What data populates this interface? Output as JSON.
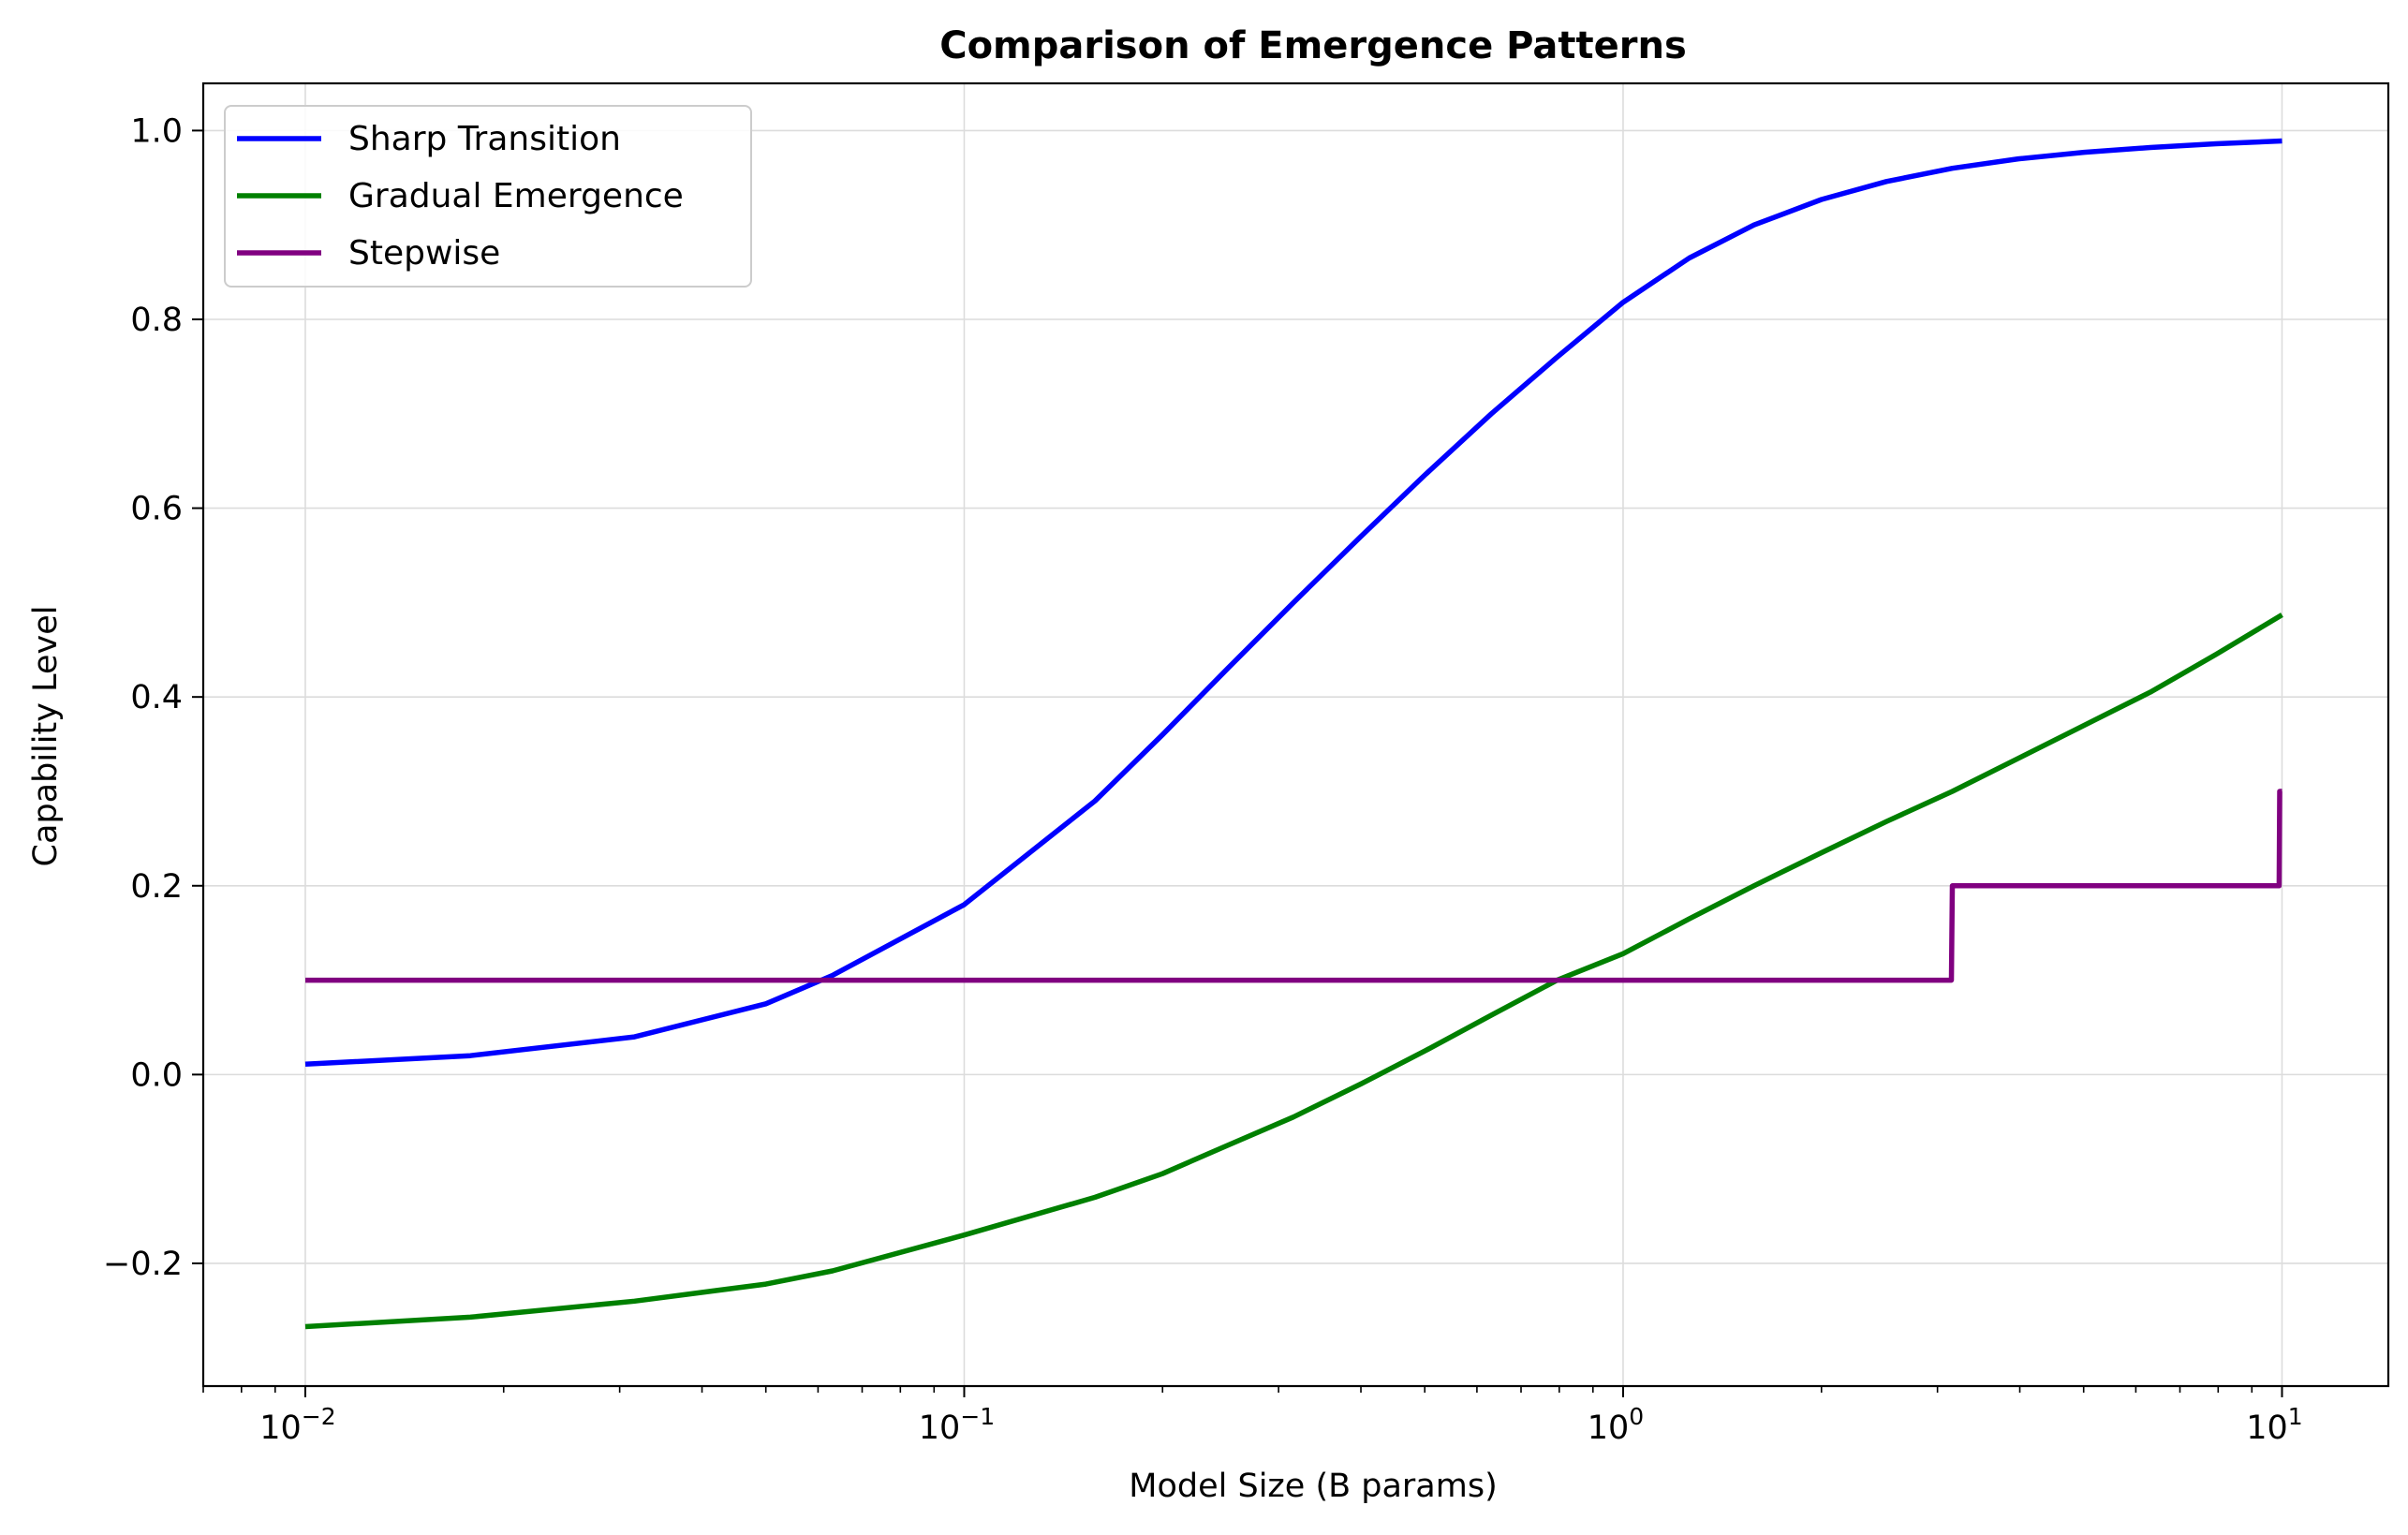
{
  "chart_data": {
    "type": "line",
    "title": "Comparison of Emergence Patterns",
    "xlabel": "Model Size (B params)",
    "ylabel": "Capability Level",
    "xscale": "log",
    "xlim": [
      0.007,
      14.5
    ],
    "ylim": [
      -0.33,
      1.05
    ],
    "grid": true,
    "legend_position": "top-left",
    "xticks": [
      {
        "value": 0.01,
        "base": "10",
        "exp": "−2"
      },
      {
        "value": 0.1,
        "base": "10",
        "exp": "−1"
      },
      {
        "value": 1,
        "base": "10",
        "exp": "0"
      },
      {
        "value": 10,
        "base": "10",
        "exp": "1"
      }
    ],
    "yticks": [
      {
        "value": -0.2,
        "label": "−0.2"
      },
      {
        "value": 0.0,
        "label": "0.0"
      },
      {
        "value": 0.2,
        "label": "0.2"
      },
      {
        "value": 0.4,
        "label": "0.4"
      },
      {
        "value": 0.6,
        "label": "0.6"
      },
      {
        "value": 0.8,
        "label": "0.8"
      },
      {
        "value": 1.0,
        "label": "1.0"
      }
    ],
    "series": [
      {
        "name": "Sharp Transition",
        "color": "#0000ff",
        "x": [
          0.01,
          0.0178,
          0.0316,
          0.05,
          0.0631,
          0.1,
          0.158,
          0.2,
          0.251,
          0.316,
          0.4,
          0.5,
          0.631,
          0.794,
          1.0,
          1.26,
          1.58,
          2.0,
          2.51,
          3.16,
          3.98,
          5.01,
          6.31,
          7.94,
          10.0
        ],
        "y": [
          0.011,
          0.02,
          0.04,
          0.075,
          0.105,
          0.18,
          0.29,
          0.36,
          0.43,
          0.5,
          0.57,
          0.635,
          0.7,
          0.76,
          0.818,
          0.865,
          0.9,
          0.927,
          0.946,
          0.96,
          0.97,
          0.977,
          0.982,
          0.986,
          0.989
        ]
      },
      {
        "name": "Gradual Emergence",
        "color": "#008000",
        "x": [
          0.01,
          0.0178,
          0.0316,
          0.05,
          0.0631,
          0.1,
          0.158,
          0.2,
          0.251,
          0.316,
          0.4,
          0.5,
          0.631,
          0.794,
          1.0,
          1.26,
          1.58,
          2.0,
          2.51,
          3.16,
          3.98,
          5.01,
          6.31,
          7.94,
          10.0
        ],
        "y": [
          -0.267,
          -0.257,
          -0.24,
          -0.222,
          -0.208,
          -0.17,
          -0.13,
          -0.105,
          -0.075,
          -0.045,
          -0.01,
          0.025,
          0.063,
          0.1,
          0.128,
          0.165,
          0.2,
          0.235,
          0.268,
          0.3,
          0.335,
          0.37,
          0.405,
          0.445,
          0.487
        ]
      },
      {
        "name": "Stepwise",
        "color": "#800080",
        "x": [
          0.01,
          3.15,
          3.16,
          9.9,
          9.92,
          10.0
        ],
        "y": [
          0.1,
          0.1,
          0.2,
          0.2,
          0.3,
          0.3
        ]
      }
    ]
  }
}
